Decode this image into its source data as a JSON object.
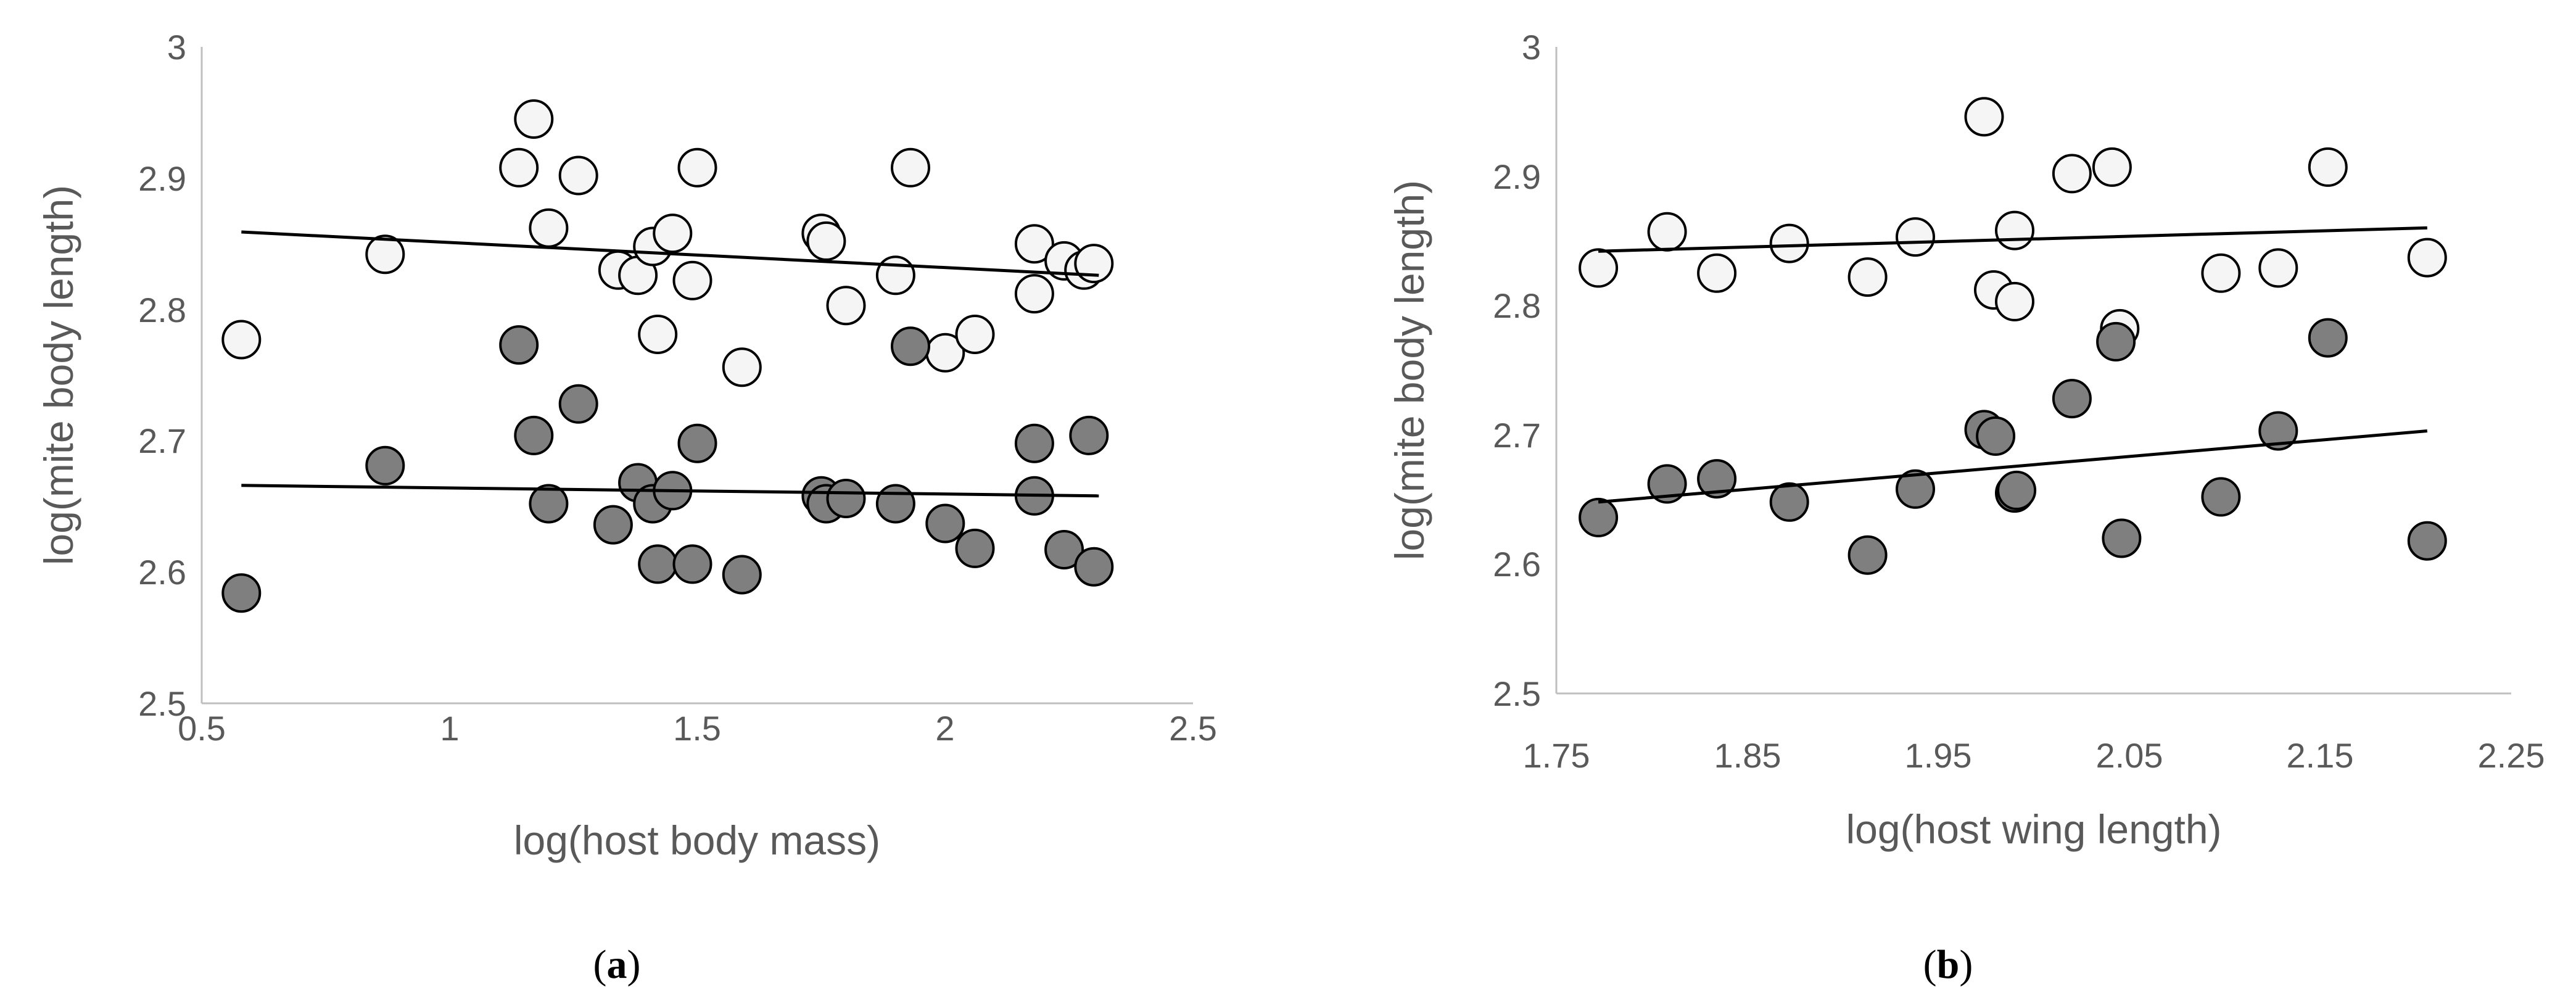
{
  "chart_data": [
    {
      "type": "scatter",
      "caption_letter": "a",
      "xlabel": "log(host body mass)",
      "ylabel": "log(mite body length)",
      "xlim": [
        0.5,
        2.5
      ],
      "ylim": [
        2.5,
        3.0
      ],
      "x_ticks": [
        0.5,
        1,
        1.5,
        2,
        2.5
      ],
      "x_tick_labels": [
        "0.5",
        "1",
        "1.5",
        "2",
        "2.5"
      ],
      "y_ticks": [
        2.5,
        2.6,
        2.7,
        2.8,
        2.9,
        3.0
      ],
      "y_tick_labels": [
        "2.5",
        "2.6",
        "2.7",
        "2.8",
        "2.9",
        "3"
      ],
      "series": [
        {
          "name": "open",
          "fill": "#f5f5f5",
          "points": [
            [
              0.58,
              2.777
            ],
            [
              0.87,
              2.842
            ],
            [
              1.14,
              2.908
            ],
            [
              1.17,
              2.945
            ],
            [
              1.2,
              2.862
            ],
            [
              1.26,
              2.902
            ],
            [
              1.34,
              2.83
            ],
            [
              1.38,
              2.826
            ],
            [
              1.41,
              2.848
            ],
            [
              1.42,
              2.781
            ],
            [
              1.45,
              2.858
            ],
            [
              1.49,
              2.822
            ],
            [
              1.5,
              2.908
            ],
            [
              1.59,
              2.756
            ],
            [
              1.75,
              2.858
            ],
            [
              1.76,
              2.852
            ],
            [
              1.8,
              2.803
            ],
            [
              1.9,
              2.826
            ],
            [
              1.93,
              2.908
            ],
            [
              2.0,
              2.767
            ],
            [
              2.06,
              2.781
            ],
            [
              2.18,
              2.85
            ],
            [
              2.18,
              2.812
            ],
            [
              2.24,
              2.837
            ],
            [
              2.28,
              2.83
            ],
            [
              2.3,
              2.835
            ]
          ],
          "trend": [
            [
              0.58,
              2.859
            ],
            [
              2.31,
              2.826
            ]
          ]
        },
        {
          "name": "filled",
          "fill": "#7f7f7f",
          "points": [
            [
              0.58,
              2.584
            ],
            [
              0.87,
              2.681
            ],
            [
              1.14,
              2.773
            ],
            [
              1.17,
              2.704
            ],
            [
              1.2,
              2.652
            ],
            [
              1.26,
              2.728
            ],
            [
              1.33,
              2.636
            ],
            [
              1.38,
              2.668
            ],
            [
              1.41,
              2.652
            ],
            [
              1.42,
              2.606
            ],
            [
              1.45,
              2.662
            ],
            [
              1.5,
              2.698
            ],
            [
              1.49,
              2.606
            ],
            [
              1.59,
              2.598
            ],
            [
              1.75,
              2.658
            ],
            [
              1.76,
              2.652
            ],
            [
              1.8,
              2.656
            ],
            [
              1.9,
              2.652
            ],
            [
              1.93,
              2.772
            ],
            [
              2.0,
              2.637
            ],
            [
              2.06,
              2.618
            ],
            [
              2.18,
              2.698
            ],
            [
              2.18,
              2.658
            ],
            [
              2.24,
              2.617
            ],
            [
              2.29,
              2.704
            ],
            [
              2.3,
              2.604
            ]
          ],
          "trend": [
            [
              0.58,
              2.666
            ],
            [
              2.31,
              2.658
            ]
          ]
        }
      ]
    },
    {
      "type": "scatter",
      "caption_letter": "b",
      "xlabel": "log(host wing length)",
      "ylabel": "log(mite body length)",
      "xlim": [
        1.75,
        2.25
      ],
      "ylim": [
        2.5,
        3.0
      ],
      "x_ticks": [
        1.75,
        1.85,
        1.95,
        2.05,
        2.15,
        2.25
      ],
      "x_tick_labels": [
        "1.75",
        "1.85",
        "1.95",
        "2.05",
        "2.15",
        "2.25"
      ],
      "y_ticks": [
        2.5,
        2.6,
        2.7,
        2.8,
        2.9,
        3.0
      ],
      "y_tick_labels": [
        "2.5",
        "2.6",
        "2.7",
        "2.8",
        "2.9",
        "3"
      ],
      "series": [
        {
          "name": "open",
          "fill": "#f5f5f5",
          "points": [
            [
              1.772,
              2.829
            ],
            [
              1.808,
              2.857
            ],
            [
              1.834,
              2.825
            ],
            [
              1.872,
              2.848
            ],
            [
              1.913,
              2.822
            ],
            [
              1.938,
              2.853
            ],
            [
              1.974,
              2.946
            ],
            [
              1.979,
              2.812
            ],
            [
              1.99,
              2.803
            ],
            [
              1.99,
              2.858
            ],
            [
              2.02,
              2.902
            ],
            [
              2.041,
              2.907
            ],
            [
              2.045,
              2.782
            ],
            [
              2.098,
              2.825
            ],
            [
              2.128,
              2.829
            ],
            [
              2.154,
              2.907
            ],
            [
              2.206,
              2.837
            ]
          ],
          "trend": [
            [
              1.772,
              2.842
            ],
            [
              2.206,
              2.86
            ]
          ]
        },
        {
          "name": "filled",
          "fill": "#7f7f7f",
          "points": [
            [
              1.772,
              2.636
            ],
            [
              1.808,
              2.662
            ],
            [
              1.834,
              2.666
            ],
            [
              1.872,
              2.648
            ],
            [
              1.913,
              2.607
            ],
            [
              1.938,
              2.658
            ],
            [
              1.974,
              2.704
            ],
            [
              1.98,
              2.699
            ],
            [
              1.99,
              2.655
            ],
            [
              1.991,
              2.657
            ],
            [
              2.02,
              2.728
            ],
            [
              2.043,
              2.772
            ],
            [
              2.046,
              2.62
            ],
            [
              2.098,
              2.652
            ],
            [
              2.128,
              2.703
            ],
            [
              2.154,
              2.775
            ],
            [
              2.206,
              2.618
            ]
          ],
          "trend": [
            [
              1.772,
              2.648
            ],
            [
              2.206,
              2.703
            ]
          ]
        }
      ]
    }
  ]
}
